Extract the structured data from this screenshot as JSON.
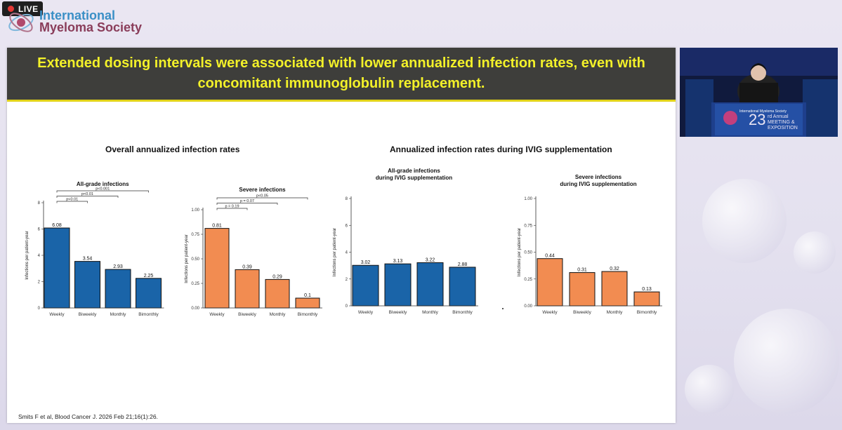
{
  "live_badge": {
    "label": "LIVE"
  },
  "logo": {
    "line1": "International",
    "line2": "Myeloma Society"
  },
  "slide": {
    "headline": "Extended dosing intervals were associated with lower annualized infection rates, even with concomitant immunoglobulin replacement.",
    "section_left_title": "Overall annualized infection rates",
    "section_right_title": "Annualized infection rates during IVIG supplementation",
    "citation": "Smits F et al, Blood Cancer J. 2026 Feb 21;16(1):26."
  },
  "colors": {
    "blue": "#1a64a8",
    "orange": "#f28c51",
    "banner_bg": "#3e3e3b",
    "banner_text": "#f3f129"
  },
  "chart_data": [
    {
      "type": "bar",
      "title": "All-grade infections",
      "ylabel": "Infections per patient-year",
      "categories": [
        "Weekly",
        "Biweekly",
        "Monthly",
        "Bimonthly"
      ],
      "values": [
        6.08,
        3.54,
        2.93,
        2.25
      ],
      "value_labels": [
        "6.08",
        "3.54",
        "2.93",
        "2.25"
      ],
      "ylim": [
        0,
        8
      ],
      "yticks": [
        "0",
        "2",
        "4",
        "6",
        "8"
      ],
      "color": "#1a64a8",
      "annotations": [
        {
          "label": "p<0.01",
          "from": "Weekly",
          "to": "Biweekly"
        },
        {
          "label": "p<0.01",
          "from": "Weekly",
          "to": "Monthly"
        },
        {
          "label": "p<0.001",
          "from": "Weekly",
          "to": "Bimonthly"
        }
      ]
    },
    {
      "type": "bar",
      "title": "Severe infections",
      "ylabel": "Infections per patient-year",
      "categories": [
        "Weekly",
        "Biweekly",
        "Monthly",
        "Bimonthly"
      ],
      "values": [
        0.81,
        0.39,
        0.29,
        0.1
      ],
      "value_labels": [
        "0.81",
        "0.39",
        "0.29",
        "0.1"
      ],
      "ylim": [
        0,
        1.0
      ],
      "yticks": [
        "0.00",
        "0.25",
        "0.50",
        "0.75",
        "1.00"
      ],
      "color": "#f28c51",
      "annotations": [
        {
          "label": "p = 0.19",
          "from": "Weekly",
          "to": "Biweekly"
        },
        {
          "label": "p = 0.07",
          "from": "Weekly",
          "to": "Monthly"
        },
        {
          "label": "p<0.05",
          "from": "Weekly",
          "to": "Bimonthly"
        }
      ]
    },
    {
      "type": "bar",
      "title": "All-grade infections\nduring IVIG supplementation",
      "ylabel": "Infections per patient-year",
      "categories": [
        "Weekly",
        "Biweekly",
        "Monthly",
        "Bimonthly"
      ],
      "values": [
        3.02,
        3.13,
        3.22,
        2.88
      ],
      "value_labels": [
        "3.02",
        "3.13",
        "3.22",
        "2.88"
      ],
      "ylim": [
        0,
        8
      ],
      "yticks": [
        "0",
        "2",
        "4",
        "6",
        "8"
      ],
      "color": "#1a64a8",
      "annotations": []
    },
    {
      "type": "bar",
      "title": "Severe infections\nduring IVIG supplementation",
      "ylabel": "Infections per patient-year",
      "categories": [
        "Weekly",
        "Biweekly",
        "Monthly",
        "Bimonthly"
      ],
      "values": [
        0.44,
        0.31,
        0.32,
        0.13
      ],
      "value_labels": [
        "0.44",
        "0.31",
        "0.32",
        "0.13"
      ],
      "ylim": [
        0,
        1.0
      ],
      "yticks": [
        "0.00",
        "0.25",
        "0.50",
        "0.75",
        "1.00"
      ],
      "color": "#f28c51",
      "annotations": []
    }
  ]
}
